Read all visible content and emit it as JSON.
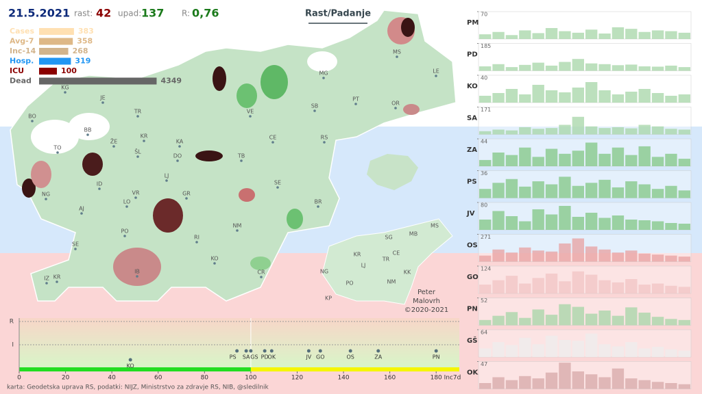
{
  "header": {
    "date": "21.5.2021",
    "rast_label": "rast:",
    "rast": "42",
    "upad_label": "upad:",
    "upad": "137",
    "r_label": "R:",
    "r": "0,76",
    "toggle": "Rast/Padanje"
  },
  "map_labels": [
    "KG",
    "JE",
    "BO",
    "BB",
    "TR",
    "KR",
    "ŽE",
    "TO",
    "ŠL",
    "KA",
    "DO",
    "LJ",
    "ID",
    "VR",
    "GR",
    "NG",
    "AJ",
    "LO",
    "PO",
    "SE",
    "RI",
    "KO",
    "IB",
    "KR",
    "IZ",
    "NM",
    "CR",
    "BR",
    "SE",
    "TB",
    "CE",
    "RS",
    "VE",
    "SB",
    "MG",
    "PT",
    "OR",
    "MS",
    "LE"
  ],
  "mini_map_labels": [
    "SG",
    "MB",
    "MS",
    "KR",
    "CE",
    "TR",
    "LJ",
    "NG",
    "KK",
    "PO",
    "NM",
    "KP"
  ],
  "credit": [
    "Peter",
    "Malovrh",
    "©2020-2021"
  ],
  "footer": "karta: Geodetska uprava RS,  podatki: NIJZ, Ministrstvo za zdravje RS, NIB, @sledilnik",
  "chart_data": [
    {
      "type": "scatter",
      "categories": [
        "KO",
        "PS",
        "SA",
        "GS",
        "PD",
        "OK",
        "JV",
        "GO",
        "OS",
        "ZA",
        "PN"
      ],
      "x": [
        48,
        94,
        98,
        100,
        106,
        109,
        125,
        130,
        143,
        155,
        180
      ],
      "xlim": [
        0,
        190
      ],
      "xticks": [
        0,
        20,
        40,
        60,
        80,
        100,
        120,
        140,
        160,
        180
      ],
      "xlabel": "Inc7d",
      "y_labels": [
        "R",
        "I"
      ],
      "color": "#546e7a"
    },
    {
      "type": "hbar",
      "categories": [
        "Cases",
        "Avg-7",
        "Inc-14",
        "Hosp.",
        "ICU",
        "Dead"
      ],
      "values": [
        383,
        358,
        268,
        319,
        100,
        4349
      ],
      "colors": [
        "#ffe0b2",
        "#deb887",
        "#d2b48c",
        "#2196f3",
        "#8b0000",
        "#666666"
      ]
    },
    {
      "type": "bar",
      "name": "PM",
      "ylim": [
        0,
        70
      ],
      "yticks": [
        70
      ],
      "color": "#a5d6a7",
      "values": [
        12,
        18,
        10,
        22,
        15,
        28,
        20,
        16,
        24,
        14,
        30,
        26,
        18,
        22,
        20,
        16
      ]
    },
    {
      "type": "bar",
      "name": "PD",
      "ylim": [
        0,
        185
      ],
      "yticks": [
        185
      ],
      "color": "#a5d6a7",
      "values": [
        30,
        45,
        25,
        40,
        55,
        35,
        60,
        80,
        50,
        45,
        38,
        42,
        30,
        28,
        35,
        25
      ]
    },
    {
      "type": "bar",
      "name": "KO",
      "ylim": [
        0,
        40
      ],
      "yticks": [
        40
      ],
      "color": "#a5d6a7",
      "values": [
        10,
        14,
        20,
        12,
        26,
        18,
        15,
        22,
        30,
        18,
        12,
        16,
        20,
        14,
        10,
        12
      ]
    },
    {
      "type": "bar",
      "name": "SA",
      "ylim": [
        0,
        171
      ],
      "yticks": [
        171
      ],
      "color": "#a5d6a7",
      "values": [
        20,
        30,
        25,
        45,
        35,
        40,
        60,
        110,
        50,
        40,
        45,
        38,
        60,
        50,
        35,
        30
      ]
    },
    {
      "type": "bar",
      "name": "ZA",
      "ylim": [
        0,
        44
      ],
      "yticks": [
        44
      ],
      "color": "#81c784",
      "values": [
        10,
        22,
        18,
        30,
        15,
        28,
        20,
        25,
        38,
        20,
        30,
        18,
        32,
        15,
        20,
        12
      ]
    },
    {
      "type": "bar",
      "name": "PS",
      "ylim": [
        0,
        36
      ],
      "yticks": [
        36
      ],
      "color": "#81c784",
      "values": [
        12,
        20,
        25,
        15,
        22,
        18,
        28,
        16,
        20,
        24,
        14,
        22,
        18,
        12,
        16,
        10
      ]
    },
    {
      "type": "bar",
      "name": "JV",
      "ylim": [
        0,
        80
      ],
      "yticks": [
        80
      ],
      "color": "#81c784",
      "values": [
        30,
        55,
        40,
        25,
        60,
        45,
        70,
        38,
        50,
        35,
        42,
        30,
        28,
        25,
        20,
        18
      ]
    },
    {
      "type": "bar",
      "name": "OS",
      "ylim": [
        0,
        271
      ],
      "yticks": [
        271
      ],
      "color": "#e8a0a0",
      "values": [
        60,
        120,
        90,
        140,
        110,
        100,
        180,
        230,
        150,
        120,
        90,
        110,
        80,
        70,
        60,
        50
      ]
    },
    {
      "type": "bar",
      "name": "GO",
      "ylim": [
        0,
        124
      ],
      "yticks": [
        124
      ],
      "color": "#f2c4c4",
      "values": [
        40,
        60,
        80,
        45,
        70,
        90,
        55,
        100,
        85,
        60,
        50,
        65,
        40,
        45,
        35,
        30
      ]
    },
    {
      "type": "bar",
      "name": "PN",
      "ylim": [
        0,
        52
      ],
      "yticks": [
        52
      ],
      "color": "#a5d6a7",
      "values": [
        10,
        18,
        25,
        14,
        30,
        20,
        40,
        35,
        22,
        28,
        18,
        34,
        24,
        16,
        12,
        10
      ]
    },
    {
      "type": "bar",
      "name": "GŠ",
      "ylim": [
        0,
        64
      ],
      "yticks": [
        64
      ],
      "color": "#eeeeee",
      "values": [
        20,
        35,
        28,
        45,
        30,
        50,
        40,
        38,
        55,
        30,
        25,
        35,
        20,
        24,
        18,
        15
      ]
    },
    {
      "type": "bar",
      "name": "OK",
      "ylim": [
        0,
        47
      ],
      "yticks": [
        47
      ],
      "color": "#d7a8a8",
      "values": [
        10,
        20,
        15,
        22,
        18,
        28,
        45,
        30,
        25,
        20,
        35,
        18,
        15,
        12,
        10,
        8
      ]
    }
  ]
}
